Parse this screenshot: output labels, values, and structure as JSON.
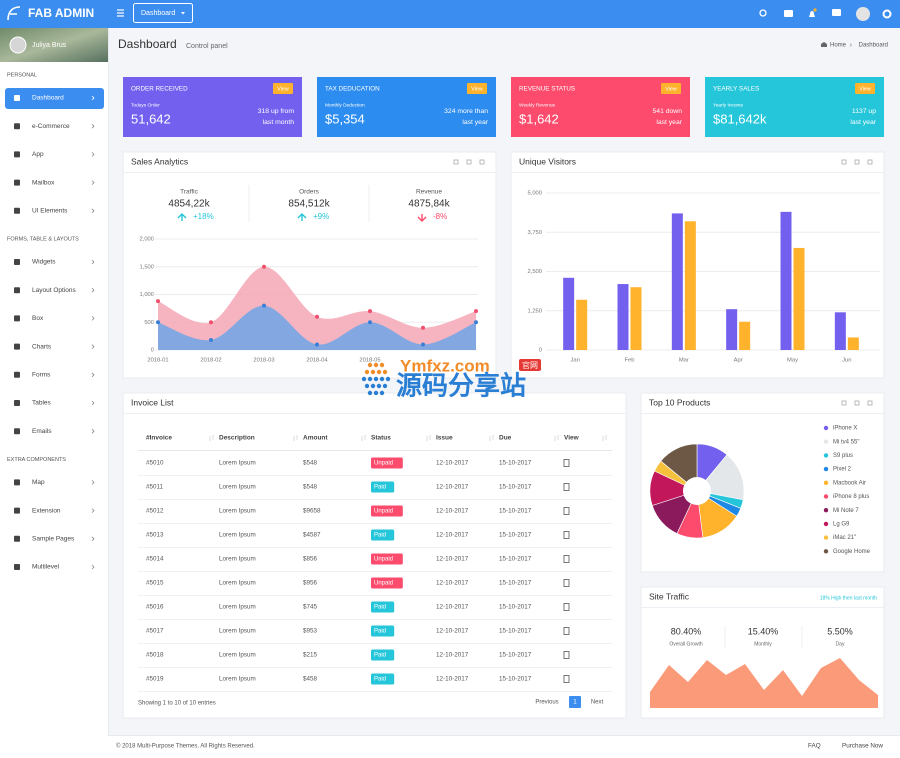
{
  "header": {
    "brand": "FAB ADMIN",
    "menu_button": "Dashboard"
  },
  "sidebar": {
    "user": "Juliya Brus",
    "sections": [
      {
        "title": "PERSONAL",
        "items": [
          "Dashboard",
          "e-Commerce",
          "App",
          "Mailbox",
          "UI Elements"
        ]
      },
      {
        "title": "FORMS, TABLE & LAYOUTS",
        "items": [
          "Widgets",
          "Layout Options",
          "Box",
          "Charts",
          "Forms",
          "Tables",
          "Emails"
        ]
      },
      {
        "title": "EXTRA COMPONENTS",
        "items": [
          "Map",
          "Extension",
          "Sample Pages",
          "Multilevel"
        ]
      }
    ]
  },
  "content_header": {
    "title": "Dashboard",
    "subtitle": "Control panel",
    "breadcrumb": [
      "Home",
      "Dashboard"
    ]
  },
  "stat_cards": [
    {
      "title": "ORDER RECEIVED",
      "badge": "View",
      "label": "Todays Order",
      "value": "51,642",
      "change": "318 up from",
      "period": "last month",
      "color": "#7460ee"
    },
    {
      "title": "TAX DEDUCATION",
      "badge": "View",
      "label": "Monthly Deduction",
      "value": "$5,354",
      "change": "324 more than",
      "period": "last year",
      "color": "#2d8cf0"
    },
    {
      "title": "REVENUE STATUS",
      "badge": "View",
      "label": "Weekly Revenue",
      "value": "$1,642",
      "change": "541 down",
      "period": "last year",
      "color": "#fc4b6c"
    },
    {
      "title": "YEARLY SALES",
      "badge": "View",
      "label": "Yearly Income",
      "value": "$81,642k",
      "change": "1137 up",
      "period": "last year",
      "color": "#26c6da"
    }
  ],
  "sales_stats": [
    {
      "label": "Traffic",
      "value": "4854,22k",
      "change": "+18%",
      "color": "#26c6da"
    },
    {
      "label": "Orders",
      "value": "854,512k",
      "change": "+9%",
      "color": "#26c6da"
    },
    {
      "label": "Revenue",
      "value": "4875,84k",
      "change": "-8%",
      "color": "#fc4b6c"
    }
  ],
  "invoice": {
    "title": "Invoice List",
    "columns": [
      "#Invoice",
      "Description",
      "Amount",
      "Status",
      "Issue",
      "Due",
      "View"
    ],
    "rows": [
      [
        "#5010",
        "Lorem Ipsum",
        "$548",
        {
          "text": "Unpaid",
          "color": "#fc4b6c"
        },
        "12-10-2017",
        "15-10-2017"
      ],
      [
        "#5011",
        "Lorem Ipsum",
        "$548",
        {
          "text": "Paid",
          "color": "#26c6da"
        },
        "12-10-2017",
        "15-10-2017"
      ],
      [
        "#5012",
        "Lorem Ipsum",
        "$9658",
        {
          "text": "Unpaid",
          "color": "#fc4b6c"
        },
        "12-10-2017",
        "15-10-2017"
      ],
      [
        "#5013",
        "Lorem Ipsum",
        "$4587",
        {
          "text": "Paid",
          "color": "#26c6da"
        },
        "12-10-2017",
        "15-10-2017"
      ],
      [
        "#5014",
        "Lorem Ipsum",
        "$856",
        {
          "text": "Unpaid",
          "color": "#fc4b6c"
        },
        "12-10-2017",
        "15-10-2017"
      ],
      [
        "#5015",
        "Lorem Ipsum",
        "$956",
        {
          "text": "Unpaid",
          "color": "#fc4b6c"
        },
        "12-10-2017",
        "15-10-2017"
      ],
      [
        "#5016",
        "Lorem Ipsum",
        "$745",
        {
          "text": "Paid",
          "color": "#26c6da"
        },
        "12-10-2017",
        "15-10-2017"
      ],
      [
        "#5017",
        "Lorem Ipsum",
        "$953",
        {
          "text": "Paid",
          "color": "#26c6da"
        },
        "12-10-2017",
        "15-10-2017"
      ],
      [
        "#5018",
        "Lorem Ipsum",
        "$215",
        {
          "text": "Paid",
          "color": "#26c6da"
        },
        "12-10-2017",
        "15-10-2017"
      ],
      [
        "#5019",
        "Lorem Ipsum",
        "$458",
        {
          "text": "Paid",
          "color": "#26c6da"
        },
        "12-10-2017",
        "15-10-2017"
      ]
    ],
    "info": "Showing 1 to 10 of 10 entries",
    "pager": [
      "Previous",
      "1",
      "Next"
    ]
  },
  "site_traffic": {
    "title": "Site Traffic",
    "note": "18% High then last month",
    "stats": [
      {
        "value": "80.40%",
        "label": "Overall Growth"
      },
      {
        "value": "15.40%",
        "label": "Monthly"
      },
      {
        "value": "5.50%",
        "label": "Day"
      }
    ]
  },
  "footer": {
    "copyright": "© 2018 Multi-Purpose Themes. All Rights Reserved.",
    "links": [
      "FAQ",
      "Purchase Now"
    ]
  },
  "watermark": {
    "site": "Ymfxz.com",
    "badge": "官网",
    "slogan": "源码分享站"
  },
  "chart_data": [
    {
      "type": "area",
      "title": "Sales Analytics",
      "categories": [
        "2018-01",
        "2018-02",
        "2018-03",
        "2018-04",
        "2018-05",
        null,
        null
      ],
      "series": [
        {
          "color": "#f4a7b5",
          "point_color": "#f0506e",
          "values": [
            880,
            500,
            1500,
            600,
            700,
            400,
            700
          ]
        },
        {
          "color": "#6ea6e6",
          "point_color": "#3a7fd6",
          "values": [
            500,
            180,
            800,
            100,
            500,
            100,
            500
          ]
        }
      ],
      "ylim": [
        0,
        2000
      ],
      "yticks": [
        0,
        500,
        {
          "value": 1000,
          "label": "1,000"
        },
        {
          "value": 1500,
          "label": "1,500"
        },
        {
          "value": 2000,
          "label": "2,000"
        }
      ],
      "grid": true
    },
    {
      "type": "bar",
      "title": "Unique Visitors",
      "categories": [
        "Jan",
        "Feb",
        "Mar",
        "Apr",
        "May",
        "Jun"
      ],
      "series": [
        {
          "color": "#7460ee",
          "values": [
            2300,
            2100,
            4350,
            1300,
            4400,
            1200
          ]
        },
        {
          "color": "#ffb22b",
          "values": [
            1600,
            2000,
            4100,
            900,
            3250,
            400
          ]
        }
      ],
      "ylim": [
        0,
        5000
      ],
      "yticks": [
        0,
        {
          "value": 1250,
          "label": "1,250"
        },
        {
          "value": 2500,
          "label": "2,500"
        },
        {
          "value": 3750,
          "label": "3,750"
        },
        {
          "value": 5000,
          "label": "5,000"
        }
      ],
      "grid": true
    },
    {
      "type": "pie",
      "title": "Top 10 Products",
      "categories": [
        "iPhone X",
        "Mi tv4 55\"",
        "S9 plus",
        "Pixel 2",
        "Macbook Air",
        "iPhone 8 plus",
        "Mi Note 7",
        "Lg G9",
        "iMac 21\"",
        "Google Home"
      ],
      "values": [
        11,
        17,
        3,
        3,
        14,
        9,
        13,
        12,
        4,
        14
      ],
      "colors": [
        "#7460ee",
        "#e4e7ea",
        "#26c6da",
        "#1e88e5",
        "#ffb22b",
        "#fc4b6c",
        "#8b1a5c",
        "#c2185b",
        "#f6c23e",
        "#6d5846"
      ]
    },
    {
      "type": "area",
      "values": [
        16,
        43,
        26,
        48,
        33,
        44,
        18,
        38,
        12,
        40,
        50,
        28,
        13
      ],
      "ylim": [
        0,
        60
      ],
      "color": "#fa9a78"
    }
  ]
}
